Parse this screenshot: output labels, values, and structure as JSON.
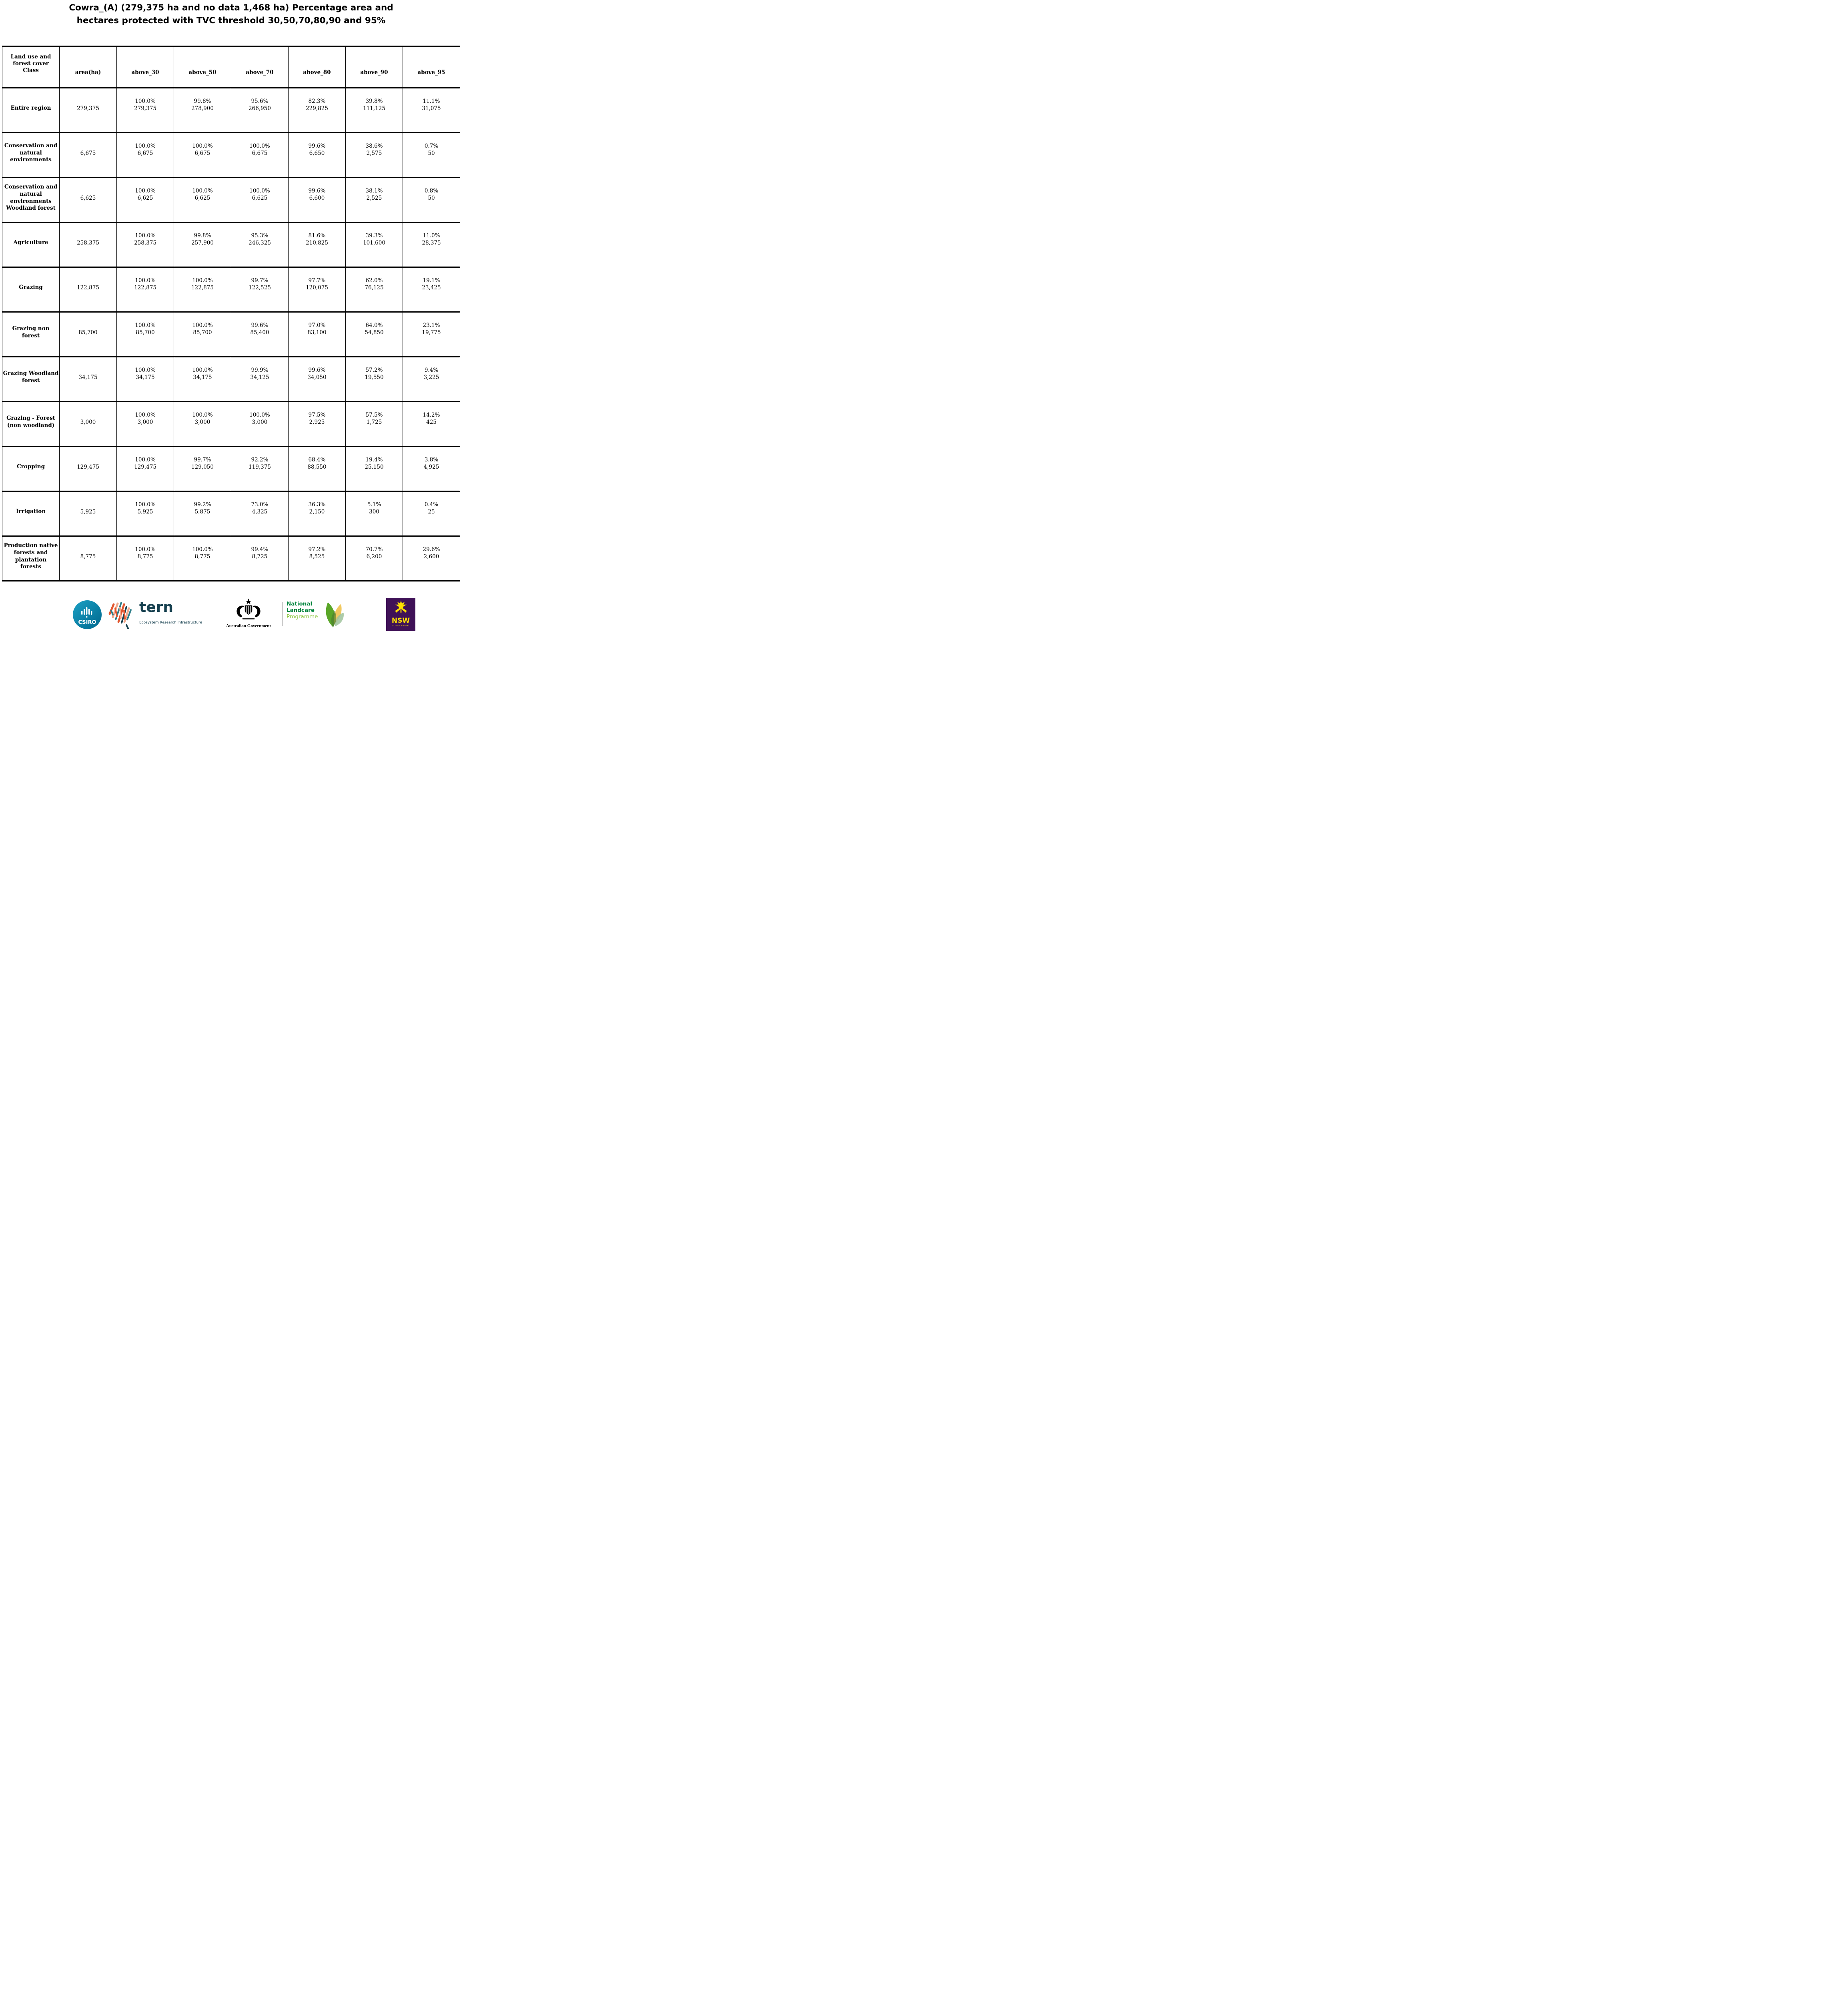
{
  "page": {
    "title": "Cowra_(A) (279,375 ha and no data 1,468 ha) Percentage area and\nhectares protected with TVC threshold 30,50,70,80,90 and 95%"
  },
  "table": {
    "header": {
      "class_col": "Land use and\nforest cover\nClass",
      "cols": [
        "area(ha)",
        "above_30",
        "above_50",
        "above_70",
        "above_80",
        "above_90",
        "above_95"
      ]
    },
    "rows": [
      {
        "label": "Entire region",
        "area": "279,375",
        "values": [
          {
            "pct": "100.0%",
            "ha": "279,375"
          },
          {
            "pct": "99.8%",
            "ha": "278,900"
          },
          {
            "pct": "95.6%",
            "ha": "266,950"
          },
          {
            "pct": "82.3%",
            "ha": "229,825"
          },
          {
            "pct": "39.8%",
            "ha": "111,125"
          },
          {
            "pct": "11.1%",
            "ha": "31,075"
          }
        ]
      },
      {
        "label": "Conservation and\nnatural\nenvironments",
        "area": "6,675",
        "values": [
          {
            "pct": "100.0%",
            "ha": "6,675"
          },
          {
            "pct": "100.0%",
            "ha": "6,675"
          },
          {
            "pct": "100.0%",
            "ha": "6,675"
          },
          {
            "pct": "99.6%",
            "ha": "6,650"
          },
          {
            "pct": "38.6%",
            "ha": "2,575"
          },
          {
            "pct": "0.7%",
            "ha": "50"
          }
        ]
      },
      {
        "label": "Conservation and\nnatural\nenvironments\nWoodland forest",
        "area": "6,625",
        "values": [
          {
            "pct": "100.0%",
            "ha": "6,625"
          },
          {
            "pct": "100.0%",
            "ha": "6,625"
          },
          {
            "pct": "100.0%",
            "ha": "6,625"
          },
          {
            "pct": "99.6%",
            "ha": "6,600"
          },
          {
            "pct": "38.1%",
            "ha": "2,525"
          },
          {
            "pct": "0.8%",
            "ha": "50"
          }
        ]
      },
      {
        "label": "Agriculture",
        "area": "258,375",
        "values": [
          {
            "pct": "100.0%",
            "ha": "258,375"
          },
          {
            "pct": "99.8%",
            "ha": "257,900"
          },
          {
            "pct": "95.3%",
            "ha": "246,325"
          },
          {
            "pct": "81.6%",
            "ha": "210,825"
          },
          {
            "pct": "39.3%",
            "ha": "101,600"
          },
          {
            "pct": "11.0%",
            "ha": "28,375"
          }
        ]
      },
      {
        "label": "Grazing",
        "area": "122,875",
        "values": [
          {
            "pct": "100.0%",
            "ha": "122,875"
          },
          {
            "pct": "100.0%",
            "ha": "122,875"
          },
          {
            "pct": "99.7%",
            "ha": "122,525"
          },
          {
            "pct": "97.7%",
            "ha": "120,075"
          },
          {
            "pct": "62.0%",
            "ha": "76,125"
          },
          {
            "pct": "19.1%",
            "ha": "23,425"
          }
        ]
      },
      {
        "label": "Grazing non\nforest",
        "area": "85,700",
        "values": [
          {
            "pct": "100.0%",
            "ha": "85,700"
          },
          {
            "pct": "100.0%",
            "ha": "85,700"
          },
          {
            "pct": "99.6%",
            "ha": "85,400"
          },
          {
            "pct": "97.0%",
            "ha": "83,100"
          },
          {
            "pct": "64.0%",
            "ha": "54,850"
          },
          {
            "pct": "23.1%",
            "ha": "19,775"
          }
        ]
      },
      {
        "label": "Grazing Woodland\nforest",
        "area": "34,175",
        "values": [
          {
            "pct": "100.0%",
            "ha": "34,175"
          },
          {
            "pct": "100.0%",
            "ha": "34,175"
          },
          {
            "pct": "99.9%",
            "ha": "34,125"
          },
          {
            "pct": "99.6%",
            "ha": "34,050"
          },
          {
            "pct": "57.2%",
            "ha": "19,550"
          },
          {
            "pct": "9.4%",
            "ha": "3,225"
          }
        ]
      },
      {
        "label": "Grazing - Forest\n(non woodland)",
        "area": "3,000",
        "values": [
          {
            "pct": "100.0%",
            "ha": "3,000"
          },
          {
            "pct": "100.0%",
            "ha": "3,000"
          },
          {
            "pct": "100.0%",
            "ha": "3,000"
          },
          {
            "pct": "97.5%",
            "ha": "2,925"
          },
          {
            "pct": "57.5%",
            "ha": "1,725"
          },
          {
            "pct": "14.2%",
            "ha": "425"
          }
        ]
      },
      {
        "label": "Cropping",
        "area": "129,475",
        "values": [
          {
            "pct": "100.0%",
            "ha": "129,475"
          },
          {
            "pct": "99.7%",
            "ha": "129,050"
          },
          {
            "pct": "92.2%",
            "ha": "119,375"
          },
          {
            "pct": "68.4%",
            "ha": "88,550"
          },
          {
            "pct": "19.4%",
            "ha": "25,150"
          },
          {
            "pct": "3.8%",
            "ha": "4,925"
          }
        ]
      },
      {
        "label": "Irrigation",
        "area": "5,925",
        "values": [
          {
            "pct": "100.0%",
            "ha": "5,925"
          },
          {
            "pct": "99.2%",
            "ha": "5,875"
          },
          {
            "pct": "73.0%",
            "ha": "4,325"
          },
          {
            "pct": "36.3%",
            "ha": "2,150"
          },
          {
            "pct": "5.1%",
            "ha": "300"
          },
          {
            "pct": "0.4%",
            "ha": "25"
          }
        ]
      },
      {
        "label": "Production native\nforests and\nplantation\nforests",
        "area": "8,775",
        "values": [
          {
            "pct": "100.0%",
            "ha": "8,775"
          },
          {
            "pct": "100.0%",
            "ha": "8,775"
          },
          {
            "pct": "99.4%",
            "ha": "8,725"
          },
          {
            "pct": "97.2%",
            "ha": "8,525"
          },
          {
            "pct": "70.7%",
            "ha": "6,200"
          },
          {
            "pct": "29.6%",
            "ha": "2,600"
          }
        ]
      }
    ]
  },
  "footer": {
    "csiro_label": "CSIRO",
    "tern_wordmark": "tern",
    "tern_tagline": "Ecosystem Research Infrastructure",
    "ausgov_label": "Australian Government",
    "landcare_line1": "National",
    "landcare_line2": "Landcare",
    "landcare_line3": "Programme",
    "nsw_name": "NSW",
    "nsw_sub": "GOVERNMENT"
  },
  "colors": {
    "csiro_top": "#1ba0c4",
    "csiro_bottom": "#00688e",
    "tern_dark": "#16404f",
    "landcare_green": "#00843d",
    "landcare_light": "#8dc63f",
    "leaf_green": "#5aa628",
    "leaf_yellow": "#f0c24e",
    "leaf_sage": "#9fc39b",
    "nsw_purple": "#3f1157",
    "nsw_yellow": "#ffe100",
    "map_orange": "#e2572f",
    "map_peach": "#f2a98c",
    "map_teal": "#2e7f8a"
  }
}
